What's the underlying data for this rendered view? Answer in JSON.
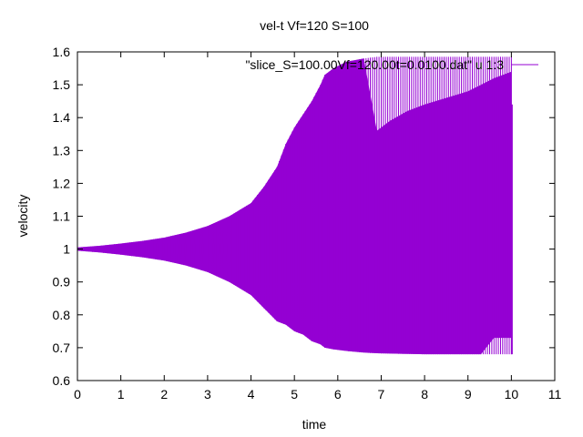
{
  "chart_data": {
    "type": "line",
    "title": "vel-t Vf=120 S=100",
    "xlabel": "time",
    "ylabel": "velocity",
    "xlim": [
      0,
      11
    ],
    "ylim": [
      0.6,
      1.6
    ],
    "xticks": [
      "0",
      "1",
      "2",
      "3",
      "4",
      "5",
      "6",
      "7",
      "8",
      "9",
      "10",
      "11"
    ],
    "yticks": [
      "0.6",
      "0.7",
      "0.8",
      "0.9",
      "1",
      "1.1",
      "1.2",
      "1.3",
      "1.4",
      "1.5",
      "1.6"
    ],
    "grid": false,
    "legend_position": "top-right",
    "series": [
      {
        "name": "\"slice_S=100.00Vf=120.00t=0.0100.dat\" u 1:3",
        "color": "#9400d3",
        "envelope": {
          "x": [
            0,
            0.5,
            1,
            1.5,
            2,
            2.5,
            3,
            3.5,
            4,
            4.3,
            4.6,
            4.8,
            5,
            5.2,
            5.4,
            5.6,
            5.7,
            5.9,
            6.2,
            6.6,
            6.9,
            7.2,
            7.6,
            8,
            8.5,
            9,
            9.3,
            9.6,
            10
          ],
          "upper": [
            1.005,
            1.01,
            1.017,
            1.025,
            1.035,
            1.05,
            1.07,
            1.1,
            1.14,
            1.19,
            1.25,
            1.32,
            1.37,
            1.41,
            1.45,
            1.5,
            1.53,
            1.55,
            1.57,
            1.58,
            1.585,
            1.585,
            1.585,
            1.585,
            1.585,
            1.585,
            1.585,
            1.585,
            1.585
          ],
          "lower": [
            0.995,
            0.99,
            0.983,
            0.975,
            0.965,
            0.95,
            0.93,
            0.9,
            0.86,
            0.82,
            0.78,
            0.77,
            0.75,
            0.74,
            0.72,
            0.71,
            0.7,
            0.695,
            0.69,
            0.685,
            0.683,
            0.682,
            0.681,
            0.68,
            0.68,
            0.68,
            0.68,
            0.68,
            0.68
          ],
          "inner_upper": [
            1.005,
            1.01,
            1.017,
            1.025,
            1.035,
            1.05,
            1.07,
            1.1,
            1.14,
            1.19,
            1.25,
            1.32,
            1.37,
            1.41,
            1.45,
            1.5,
            1.53,
            1.55,
            1.57,
            1.58,
            1.36,
            1.39,
            1.42,
            1.44,
            1.46,
            1.48,
            1.5,
            1.52,
            1.54
          ],
          "inner_lower": [
            0.995,
            0.99,
            0.983,
            0.975,
            0.965,
            0.95,
            0.93,
            0.9,
            0.86,
            0.82,
            0.78,
            0.77,
            0.75,
            0.74,
            0.72,
            0.71,
            0.7,
            0.695,
            0.69,
            0.685,
            0.683,
            0.682,
            0.681,
            0.68,
            0.68,
            0.68,
            0.68,
            0.73,
            0.73
          ]
        }
      }
    ]
  }
}
